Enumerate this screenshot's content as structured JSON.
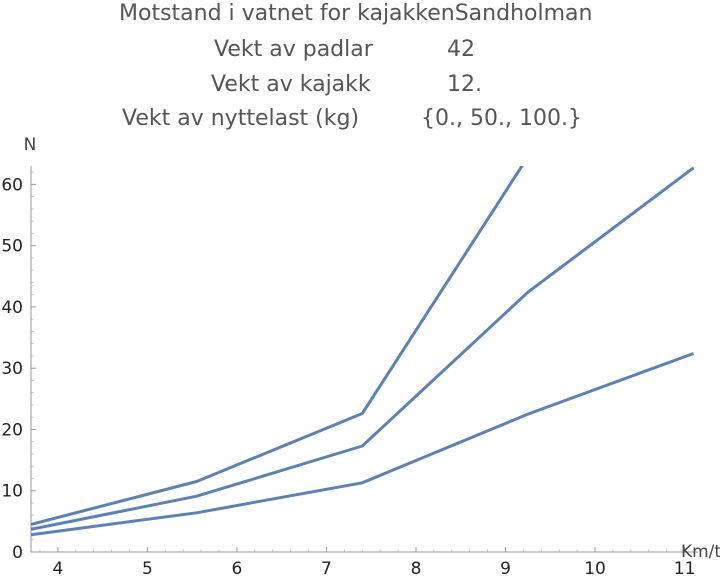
{
  "header": {
    "title": "Motstand i vatnet for kajakkenSandholman",
    "rows": [
      {
        "label": "Vekt av padlar",
        "value": "42"
      },
      {
        "label": "Vekt av kajakk",
        "value": "12."
      },
      {
        "label": "Vekt av nyttelast (kg)",
        "value": "{0., 50., 100.}"
      }
    ]
  },
  "chart_data": {
    "type": "line",
    "title": "",
    "xlabel": "Km/t",
    "ylabel": "N",
    "xlim": [
      3.7,
      11.15
    ],
    "ylim": [
      0,
      63
    ],
    "xticks": [
      "4",
      "5",
      "6",
      "7",
      "8",
      "9",
      "10",
      "11"
    ],
    "yticks": [
      "0",
      "10",
      "20",
      "30",
      "40",
      "50",
      "60"
    ],
    "grid": false,
    "line_color": "#5e81b5",
    "series": [
      {
        "x": [
          3.7,
          5.55,
          7.4,
          9.25,
          11.1
        ],
        "y": [
          2.8,
          6.4,
          11.3,
          22.5,
          32.4
        ]
      },
      {
        "x": [
          3.7,
          5.55,
          7.4,
          9.25,
          11.1
        ],
        "y": [
          3.7,
          9.1,
          17.3,
          42.4,
          62.7
        ]
      },
      {
        "x": [
          3.7,
          5.55,
          7.4,
          9.25
        ],
        "y": [
          4.5,
          11.5,
          22.6,
          64.5
        ]
      }
    ]
  }
}
